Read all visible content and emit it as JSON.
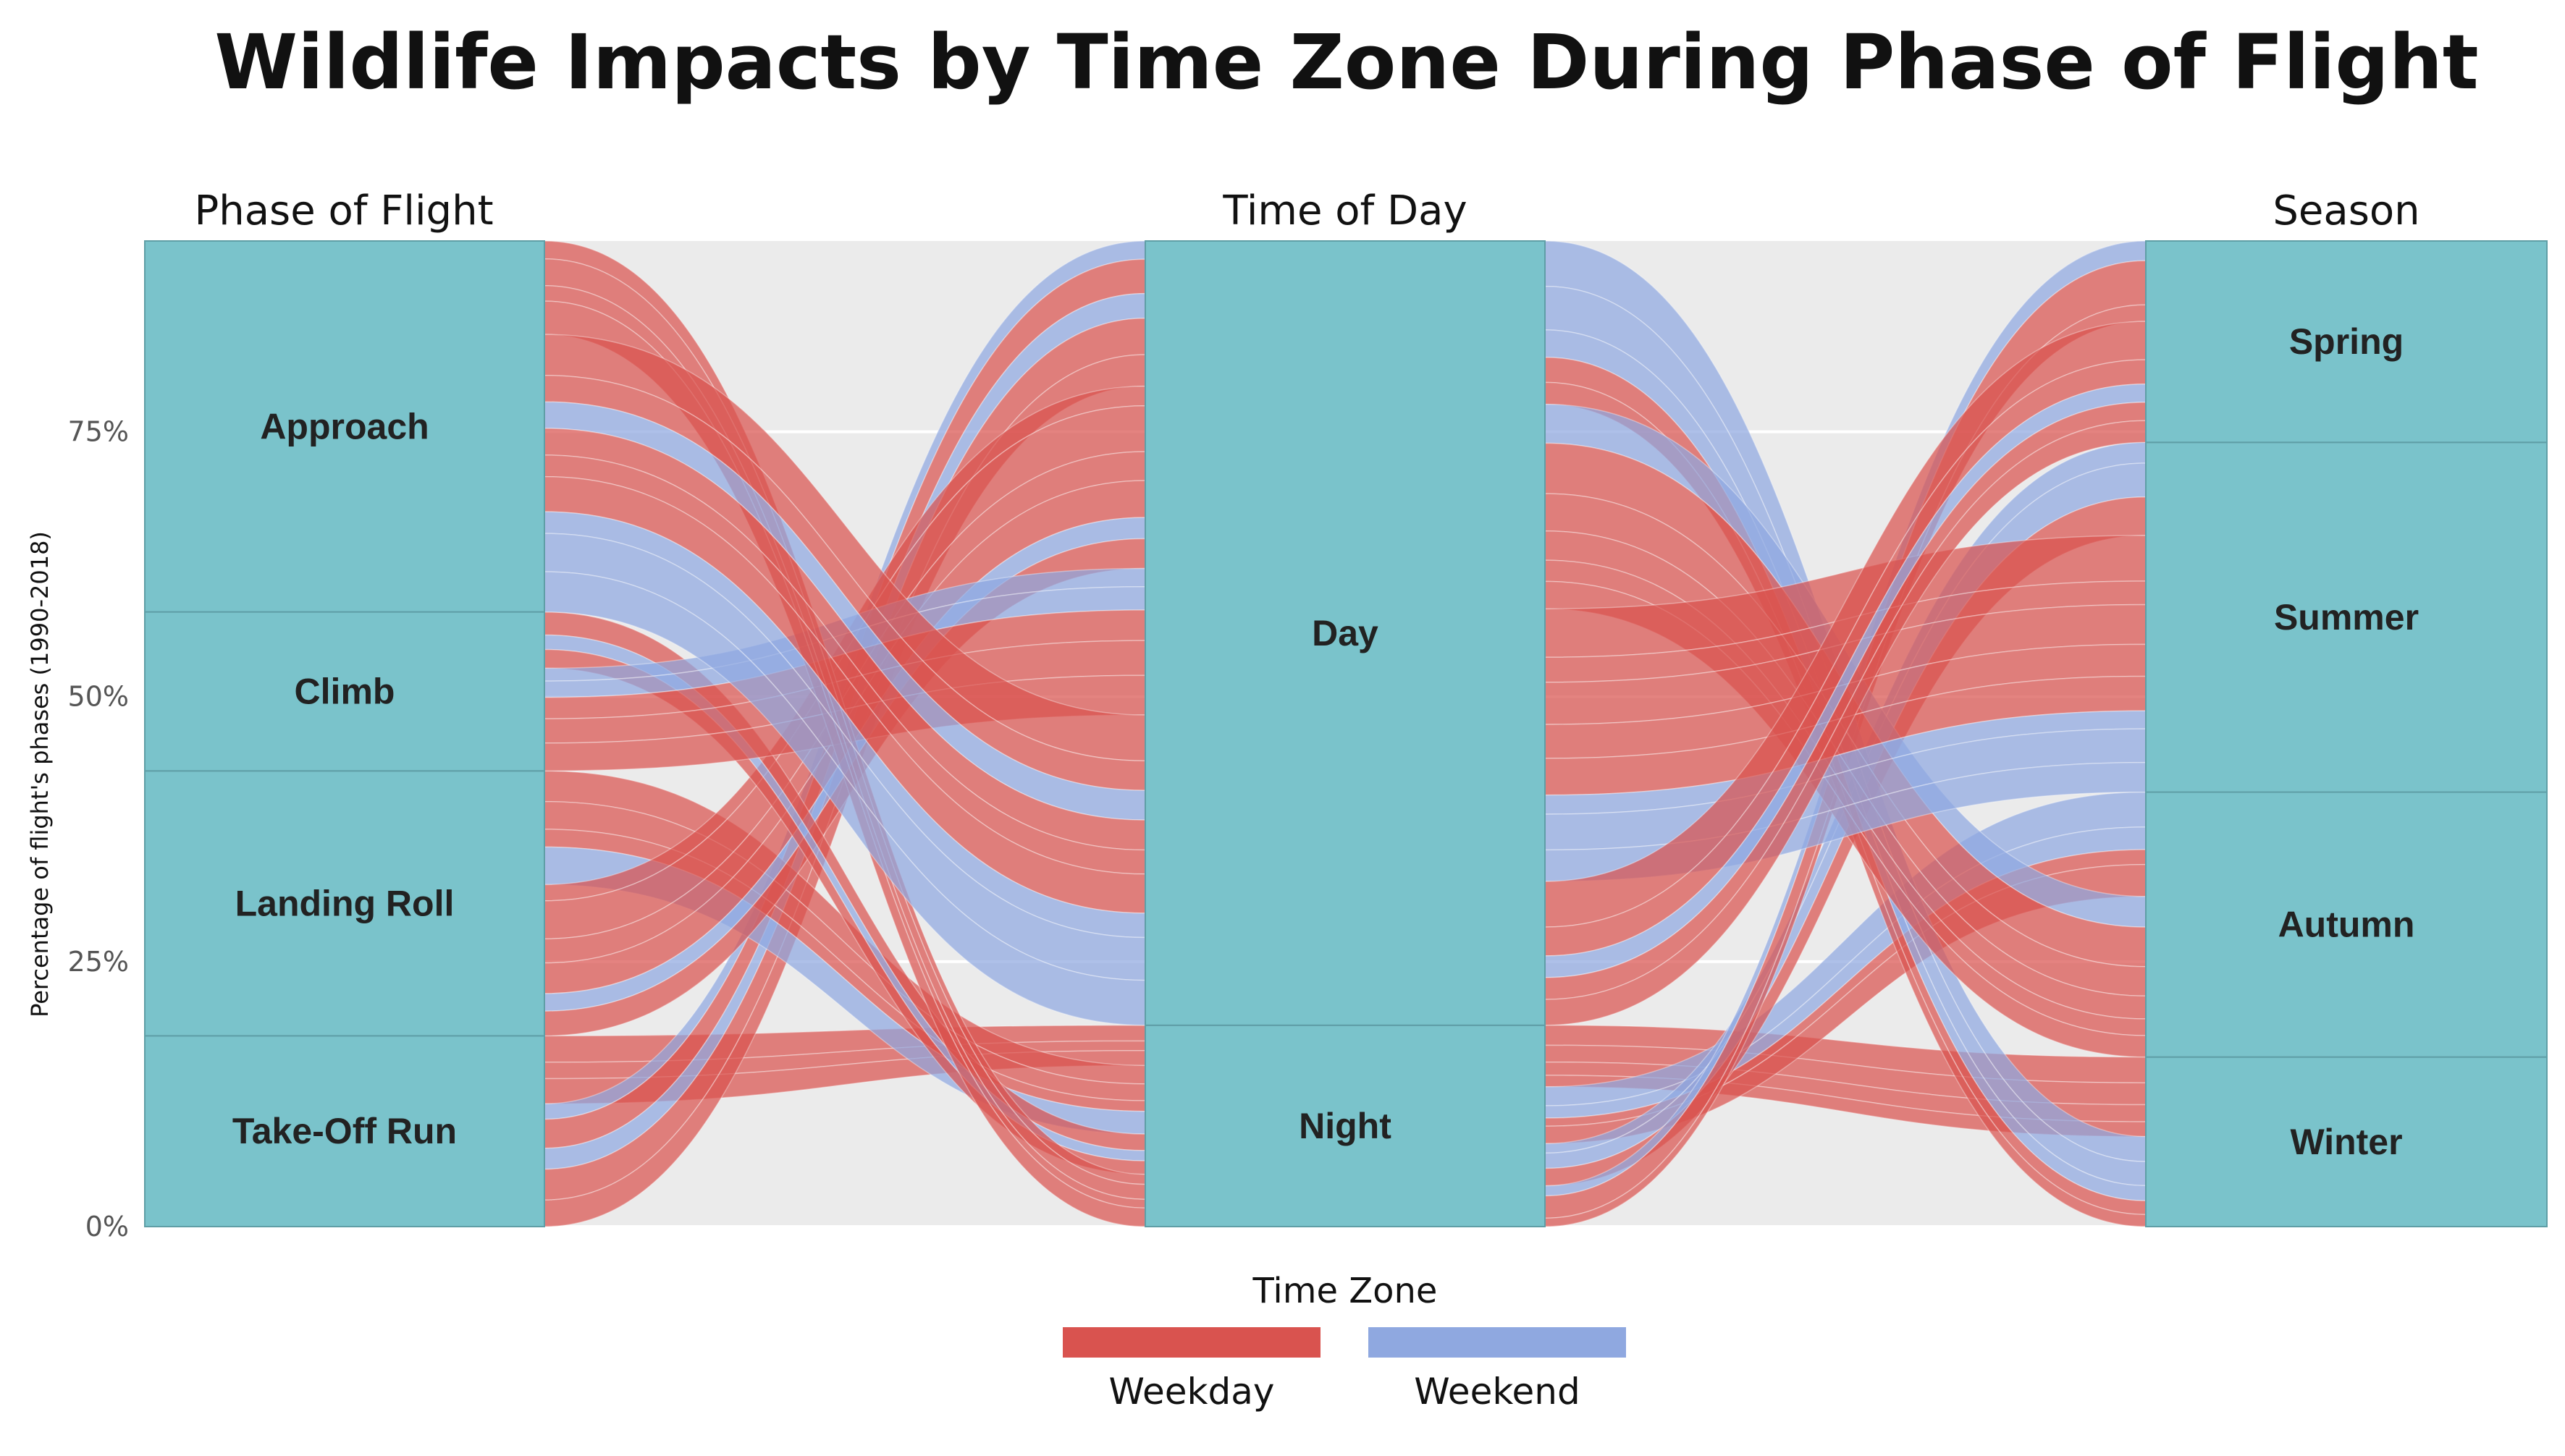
{
  "chart_data": {
    "type": "alluvial",
    "title": "Wildlife Impacts by Time Zone During Phase of Flight",
    "ylabel": "Percentage of flight's phases (1990-2018)",
    "yticks": [
      "0%",
      "25%",
      "50%",
      "75%"
    ],
    "ylim": [
      0,
      0.93
    ],
    "grid": true,
    "axes": [
      {
        "name": "Phase of Flight",
        "strata": [
          {
            "label": "Take-Off Run",
            "share": 0.18
          },
          {
            "label": "Landing Roll",
            "share": 0.25
          },
          {
            "label": "Climb",
            "share": 0.15
          },
          {
            "label": "Approach",
            "share": 0.35
          }
        ]
      },
      {
        "name": "Time of Day",
        "strata": [
          {
            "label": "Night",
            "share": 0.19
          },
          {
            "label": "Day",
            "share": 0.74
          }
        ]
      },
      {
        "name": "Season",
        "strata": [
          {
            "label": "Winter",
            "share": 0.16
          },
          {
            "label": "Autumn",
            "share": 0.25
          },
          {
            "label": "Summer",
            "share": 0.33
          },
          {
            "label": "Spring",
            "share": 0.19
          }
        ]
      }
    ],
    "legend": {
      "title": "Time Zone",
      "position": "bottom",
      "entries": [
        {
          "label": "Weekday",
          "color": "#d9534f"
        },
        {
          "label": "Weekend",
          "color": "#8fa8e0"
        }
      ]
    },
    "colors": {
      "stratum": "#7ac3cb",
      "background": "#ebebeb",
      "grid": "#ffffff"
    }
  }
}
